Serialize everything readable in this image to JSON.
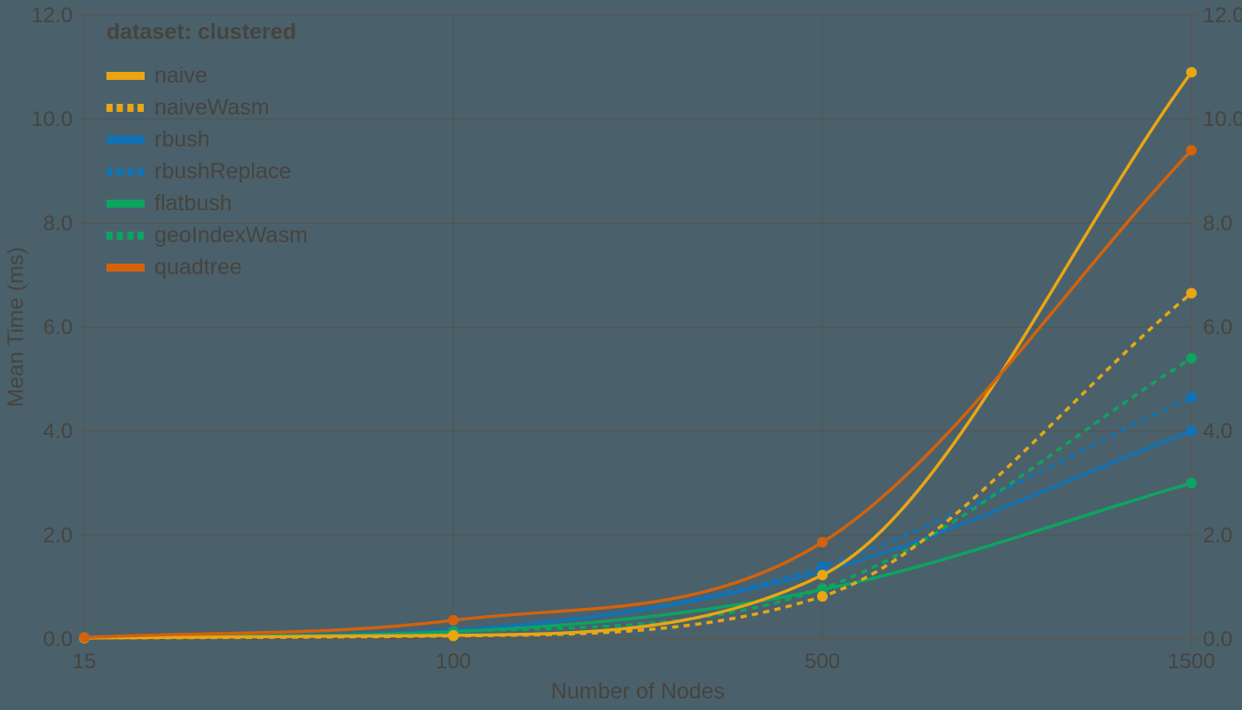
{
  "chart_data": {
    "type": "line",
    "title": "",
    "legend_title": "dataset: clustered",
    "xlabel": "Number of Nodes",
    "ylabel": "Mean Time (ms)",
    "x_categories": [
      "15",
      "100",
      "500",
      "1500"
    ],
    "y_ticks": [
      0,
      2,
      4,
      6,
      8,
      10,
      12
    ],
    "y_tick_labels": [
      "0.0",
      "2.0",
      "4.0",
      "6.0",
      "8.0",
      "10.0",
      "12.0"
    ],
    "ylim": [
      0,
      12
    ],
    "grid": true,
    "dual_y_axis": true,
    "legend_position": "top-left",
    "series": [
      {
        "name": "naive",
        "color": "#e9a612",
        "style": "solid",
        "values": [
          0.02,
          0.07,
          1.23,
          10.9
        ]
      },
      {
        "name": "naiveWasm",
        "color": "#e9a612",
        "style": "dashed",
        "values": [
          0.02,
          0.06,
          0.82,
          6.65
        ]
      },
      {
        "name": "rbush",
        "color": "#1173b5",
        "style": "solid",
        "values": [
          0.03,
          0.17,
          1.3,
          4.0
        ]
      },
      {
        "name": "rbushReplace",
        "color": "#1173b5",
        "style": "dashed",
        "values": [
          0.03,
          0.18,
          1.4,
          4.65
        ]
      },
      {
        "name": "flatbush",
        "color": "#0ca461",
        "style": "solid",
        "values": [
          0.03,
          0.14,
          0.95,
          3.0
        ]
      },
      {
        "name": "geoIndexWasm",
        "color": "#0ca461",
        "style": "dashed",
        "values": [
          0.03,
          0.14,
          0.97,
          5.4
        ]
      },
      {
        "name": "quadtree",
        "color": "#d2620c",
        "style": "solid",
        "values": [
          0.03,
          0.36,
          1.86,
          9.4
        ]
      }
    ],
    "colors": {
      "background": "#4a616c",
      "text": "#47443e",
      "axis": "#5a574e",
      "grid": "#545147"
    }
  }
}
